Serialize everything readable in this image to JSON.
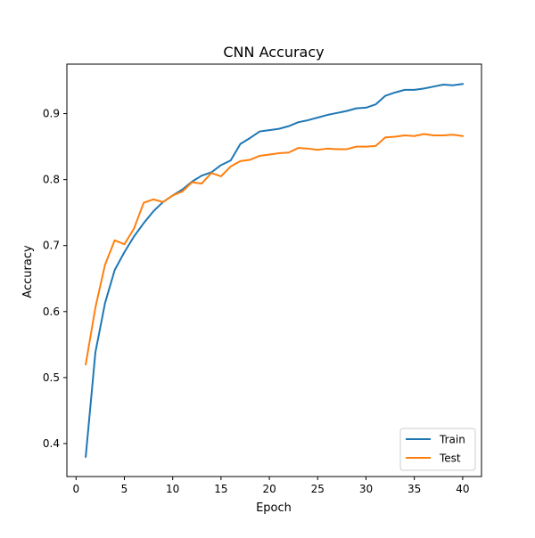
{
  "chart_data": {
    "type": "line",
    "title": "CNN Accuracy",
    "xlabel": "Epoch",
    "ylabel": "Accuracy",
    "xlim": [
      -0.95,
      41.95
    ],
    "ylim": [
      0.35,
      0.975
    ],
    "xticks": [
      0,
      5,
      10,
      15,
      20,
      25,
      30,
      35,
      40
    ],
    "yticks": [
      0.4,
      0.5,
      0.6,
      0.7,
      0.8,
      0.9
    ],
    "ytick_labels": [
      "0.4",
      "0.5",
      "0.6",
      "0.7",
      "0.8",
      "0.9"
    ],
    "grid": false,
    "legend_position": "lower-right",
    "x": [
      1,
      2,
      3,
      4,
      5,
      6,
      7,
      8,
      9,
      10,
      11,
      12,
      13,
      14,
      15,
      16,
      17,
      18,
      19,
      20,
      21,
      22,
      23,
      24,
      25,
      26,
      27,
      28,
      29,
      30,
      31,
      32,
      33,
      34,
      35,
      36,
      37,
      38,
      39,
      40
    ],
    "series": [
      {
        "name": "Train",
        "color": "#1f77b4",
        "values": [
          0.38,
          0.538,
          0.613,
          0.663,
          0.69,
          0.714,
          0.734,
          0.752,
          0.766,
          0.776,
          0.785,
          0.797,
          0.806,
          0.811,
          0.822,
          0.829,
          0.854,
          0.863,
          0.873,
          0.875,
          0.877,
          0.881,
          0.887,
          0.89,
          0.894,
          0.898,
          0.901,
          0.904,
          0.908,
          0.909,
          0.914,
          0.927,
          0.932,
          0.936,
          0.936,
          0.938,
          0.941,
          0.944,
          0.943,
          0.945
        ]
      },
      {
        "name": "Test",
        "color": "#ff7f0e",
        "values": [
          0.52,
          0.606,
          0.671,
          0.708,
          0.702,
          0.726,
          0.765,
          0.77,
          0.766,
          0.776,
          0.782,
          0.796,
          0.794,
          0.81,
          0.805,
          0.82,
          0.828,
          0.83,
          0.836,
          0.838,
          0.84,
          0.841,
          0.848,
          0.847,
          0.845,
          0.847,
          0.846,
          0.846,
          0.85,
          0.85,
          0.851,
          0.864,
          0.865,
          0.867,
          0.866,
          0.869,
          0.867,
          0.867,
          0.868,
          0.866
        ]
      }
    ]
  }
}
